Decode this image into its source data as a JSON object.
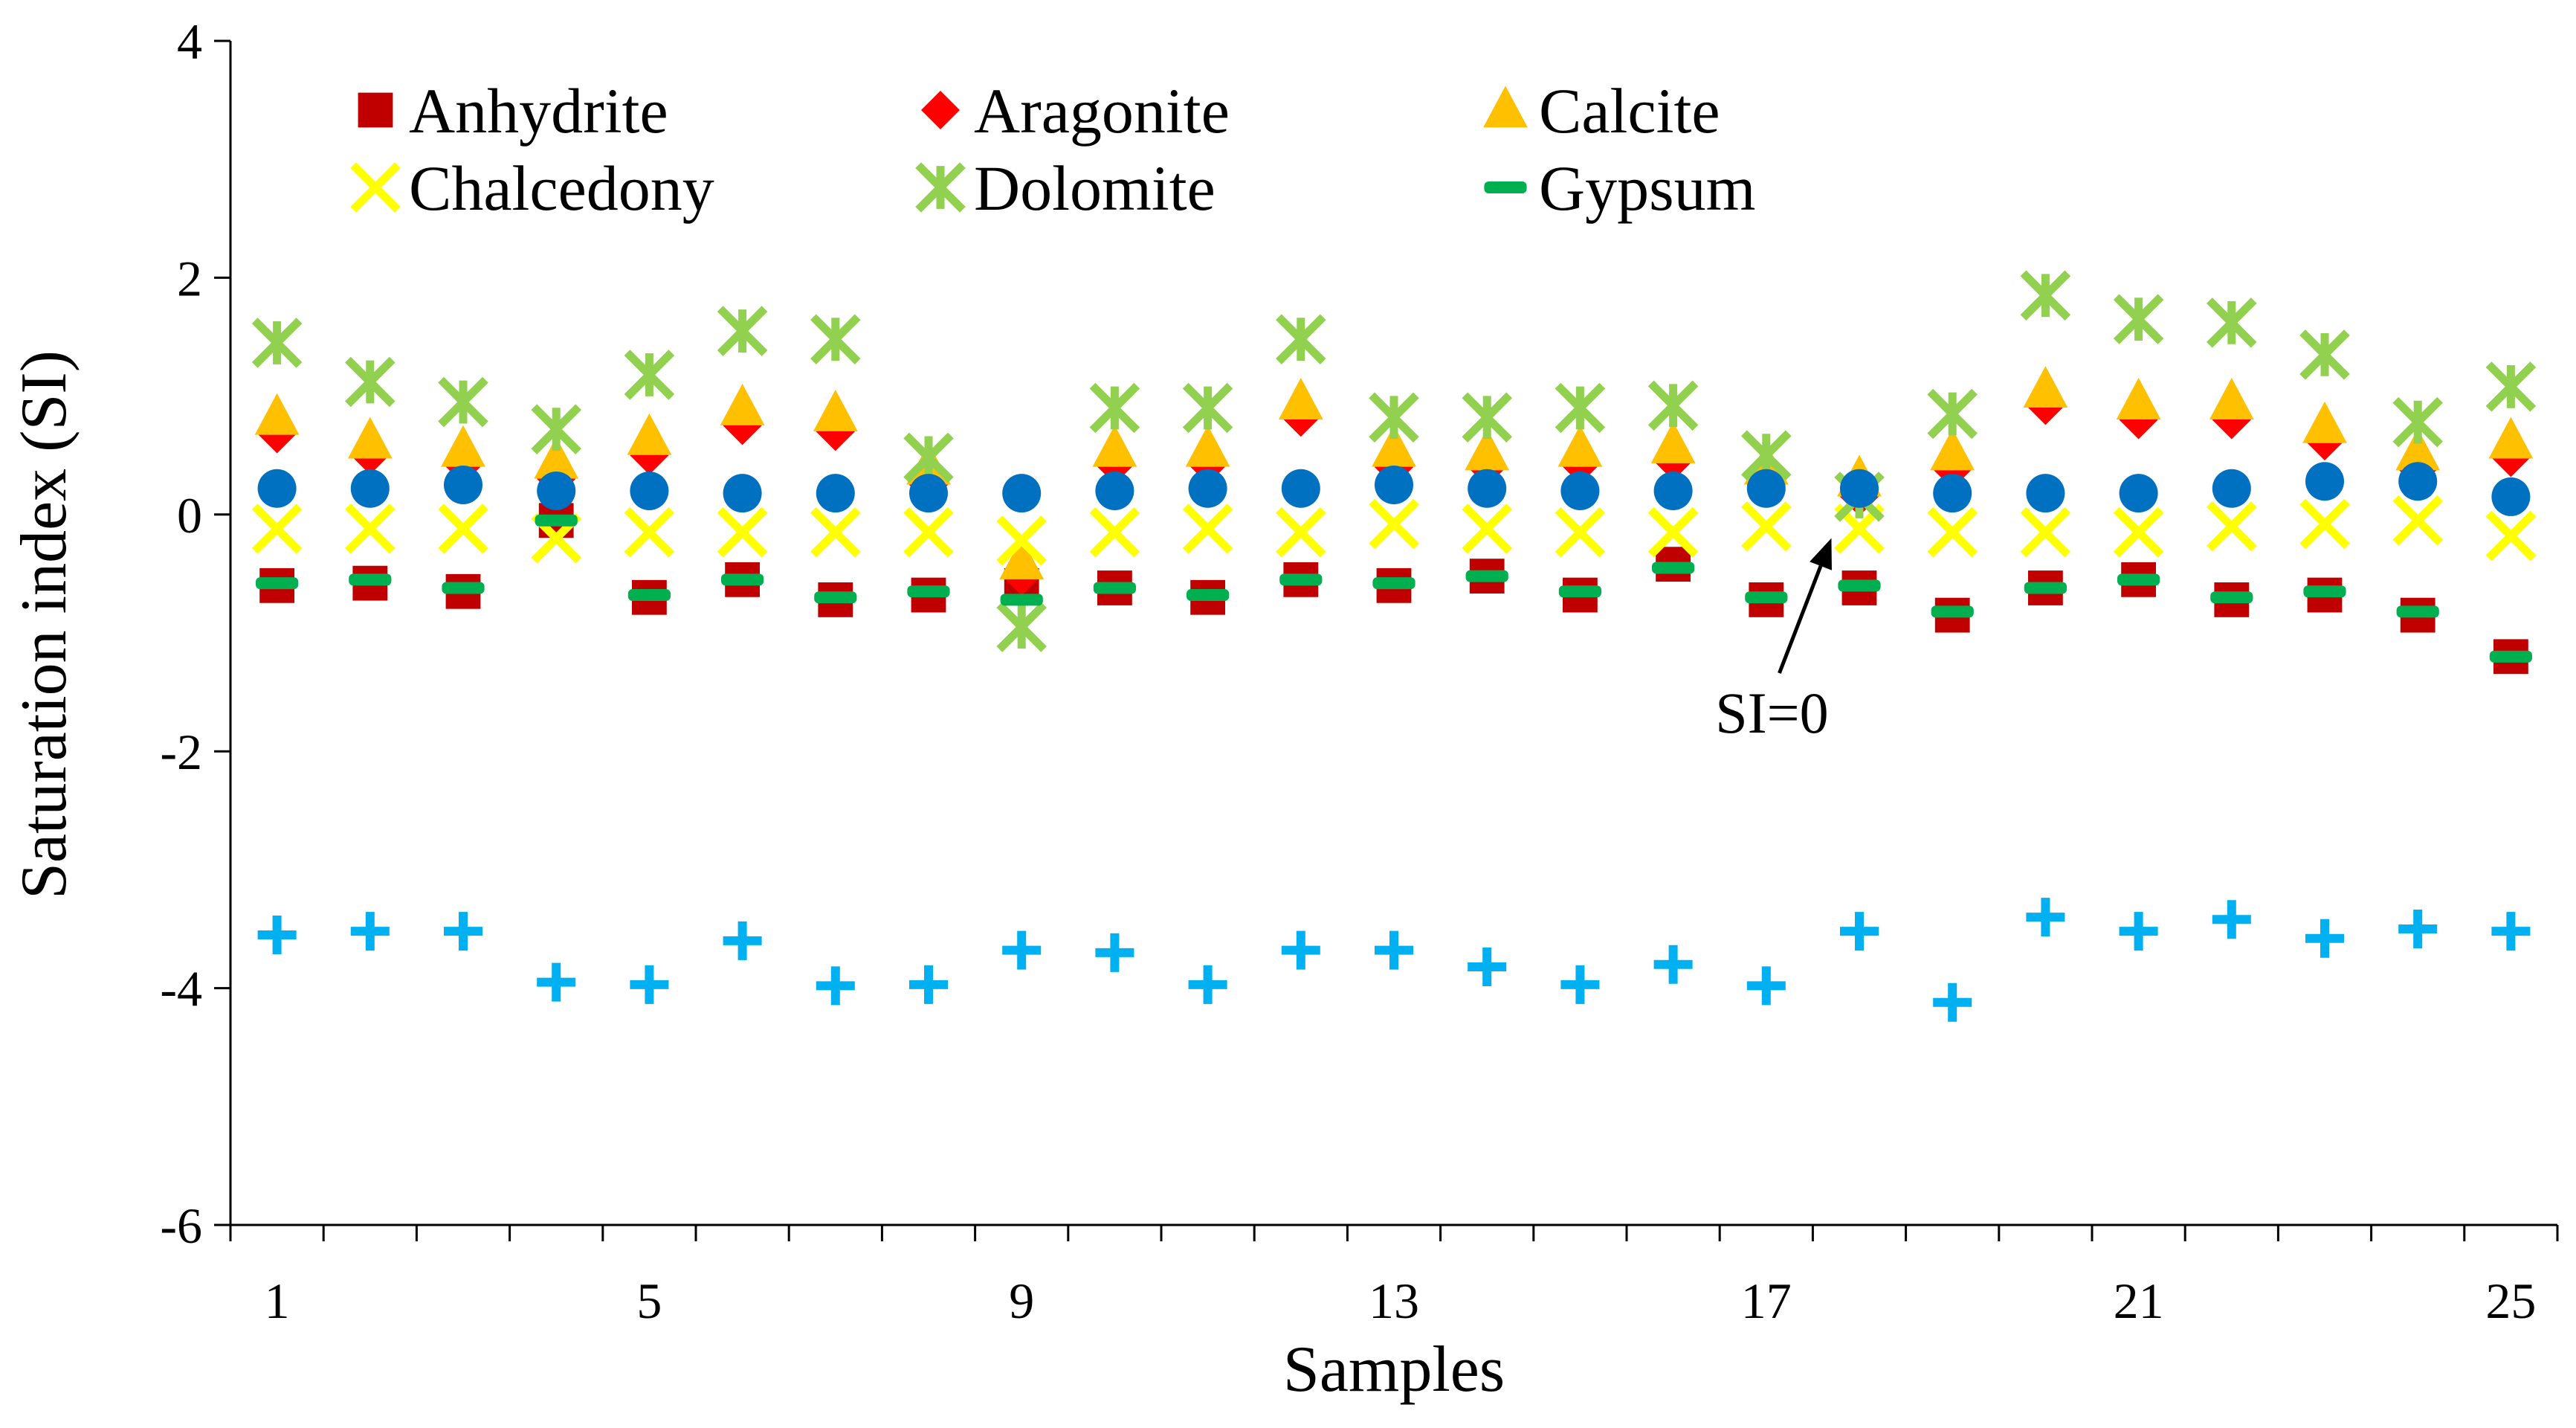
{
  "chart_data": {
    "type": "scatter",
    "xlabel": "Samples",
    "ylabel": "Saturation index (SI)",
    "xlim": [
      0.5,
      25.5
    ],
    "ylim": [
      -6,
      4
    ],
    "x_tick_labels": [
      "1",
      "5",
      "9",
      "13",
      "17",
      "21",
      "25"
    ],
    "x_tick_values": [
      1,
      5,
      9,
      13,
      17,
      21,
      25
    ],
    "y_tick_labels": [
      "4",
      "2",
      "0",
      "-2",
      "-4",
      "-6"
    ],
    "y_tick_values": [
      4,
      2,
      0,
      -2,
      -4,
      -6
    ],
    "grid": false,
    "legend_position": "top-left",
    "x": [
      1,
      2,
      3,
      4,
      5,
      6,
      7,
      8,
      9,
      10,
      11,
      12,
      13,
      14,
      15,
      16,
      17,
      18,
      19,
      20,
      21,
      22,
      23,
      24,
      25
    ],
    "series": [
      {
        "name": "Anhydrite",
        "marker": "square",
        "color": "#C00000",
        "values": [
          -0.6,
          -0.58,
          -0.65,
          -0.05,
          -0.7,
          -0.55,
          -0.72,
          -0.68,
          -0.6,
          -0.62,
          -0.7,
          -0.55,
          -0.6,
          -0.52,
          -0.68,
          -0.42,
          -0.72,
          -0.62,
          -0.85,
          -0.62,
          -0.55,
          -0.72,
          -0.68,
          -0.85,
          -1.2
        ]
      },
      {
        "name": "Aragonite",
        "marker": "diamond",
        "color": "#FF0000",
        "values": [
          0.68,
          0.5,
          0.42,
          0.3,
          0.5,
          0.75,
          0.7,
          0.25,
          -0.52,
          0.42,
          0.42,
          0.82,
          0.4,
          0.4,
          0.42,
          0.45,
          0.25,
          0.15,
          0.38,
          0.92,
          0.8,
          0.8,
          0.62,
          0.38,
          0.48
        ]
      },
      {
        "name": "Calcite",
        "marker": "triangle",
        "color": "#FFC000",
        "values": [
          0.82,
          0.62,
          0.55,
          0.45,
          0.65,
          0.9,
          0.85,
          0.4,
          -0.4,
          0.55,
          0.55,
          0.95,
          0.55,
          0.52,
          0.55,
          0.58,
          0.4,
          0.3,
          0.52,
          1.05,
          0.95,
          0.95,
          0.75,
          0.52,
          0.62
        ]
      },
      {
        "name": "Chalcedony",
        "marker": "x",
        "color": "#FFFF00",
        "values": [
          -0.12,
          -0.12,
          -0.12,
          -0.2,
          -0.15,
          -0.15,
          -0.15,
          -0.15,
          -0.22,
          -0.15,
          -0.12,
          -0.15,
          -0.08,
          -0.12,
          -0.15,
          -0.15,
          -0.1,
          -0.12,
          -0.15,
          -0.15,
          -0.15,
          -0.1,
          -0.08,
          -0.05,
          -0.18
        ]
      },
      {
        "name": "Dolomite",
        "marker": "star",
        "color": "#92D050",
        "values": [
          1.45,
          1.12,
          0.95,
          0.72,
          1.18,
          1.55,
          1.48,
          0.48,
          -0.95,
          0.9,
          0.9,
          1.48,
          0.82,
          0.82,
          0.9,
          0.92,
          0.5,
          0.15,
          0.85,
          1.85,
          1.65,
          1.62,
          1.35,
          0.78,
          1.08
        ]
      },
      {
        "name": "Gypsum",
        "marker": "dash",
        "color": "#00B050",
        "values": [
          -0.58,
          -0.55,
          -0.62,
          -0.05,
          -0.68,
          -0.55,
          -0.7,
          -0.65,
          -0.72,
          -0.62,
          -0.68,
          -0.55,
          -0.58,
          -0.52,
          -0.65,
          -0.45,
          -0.7,
          -0.6,
          -0.82,
          -0.62,
          -0.55,
          -0.7,
          -0.65,
          -0.82,
          -1.2
        ]
      },
      {
        "name": "",
        "marker": "circle",
        "color": "#0070C0",
        "values": [
          0.22,
          0.22,
          0.25,
          0.2,
          0.2,
          0.18,
          0.18,
          0.18,
          0.18,
          0.2,
          0.22,
          0.22,
          0.25,
          0.22,
          0.2,
          0.2,
          0.22,
          0.22,
          0.18,
          0.18,
          0.18,
          0.22,
          0.28,
          0.28,
          0.15
        ]
      },
      {
        "name": "",
        "marker": "plus",
        "color": "#00B0F0",
        "values": [
          -3.55,
          -3.52,
          -3.52,
          -3.95,
          -3.97,
          -3.6,
          -3.98,
          -3.97,
          -3.68,
          -3.7,
          -3.97,
          -3.68,
          -3.68,
          -3.82,
          -3.97,
          -3.8,
          -3.98,
          -3.52,
          -4.12,
          -3.4,
          -3.52,
          -3.42,
          -3.58,
          -3.5,
          -3.52
        ]
      }
    ],
    "annotation": {
      "text": "SI=0",
      "target_x": 17.7,
      "target_y": -0.2
    }
  }
}
